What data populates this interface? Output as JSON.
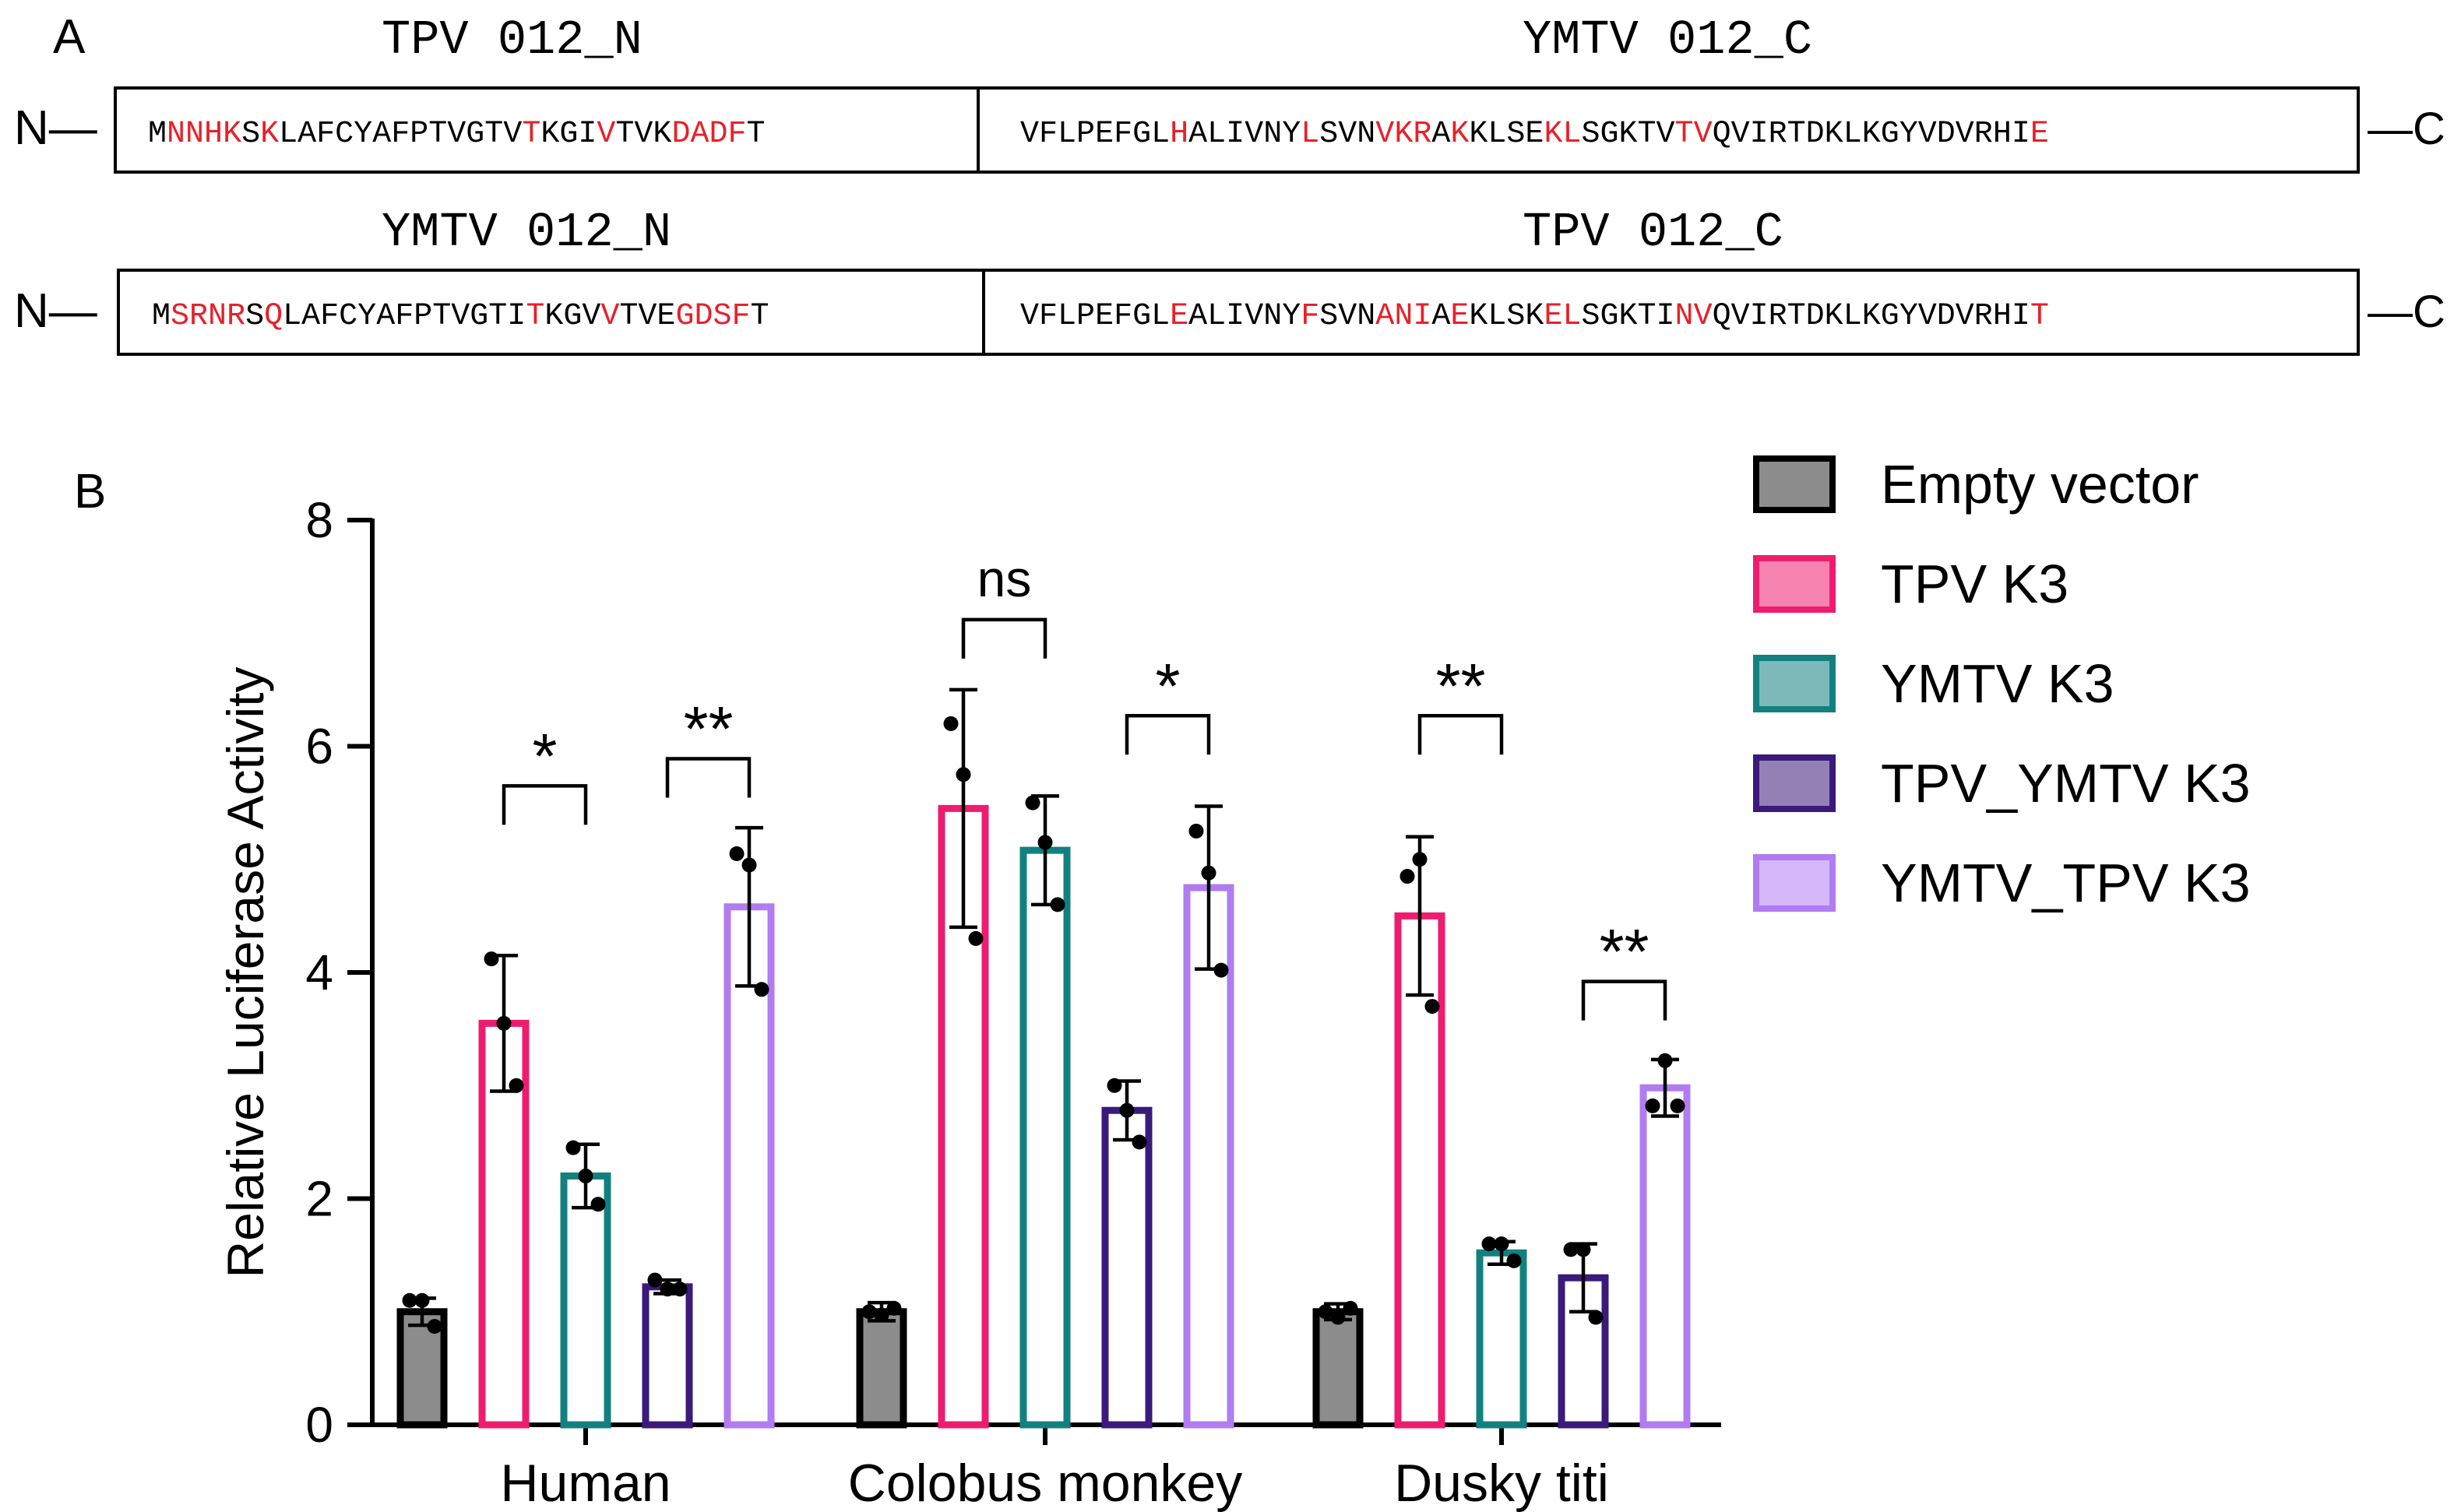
{
  "panel_a": {
    "label": "A",
    "terminal_n": "N—",
    "terminal_c": "—C",
    "constructs": [
      {
        "left_title": "TPV 012_N",
        "right_title": "YMTV 012_C",
        "left_seq": "MNNHKSKLAFCYAFPTVGTVTKGIVTVKDADFT",
        "left_red": "011110100000000000001000100011110",
        "right_seq": "VFLPEFGLHALIVNYLSVNVKRAKKLSEKLSGKTVTVQVIRTDKLKGYVDVRHIE",
        "right_red": "0000000010000001000111010000110000011000000000000000001"
      },
      {
        "left_title": "YMTV 012_N",
        "right_title": "TPV 012_C",
        "left_seq": "MSRNRSQLAFCYAFPTVGTITKGVVTVEGDSFT",
        "left_red": "011110100000000000001000100011110",
        "right_seq": "VFLPEFGLEALIVNYFSVNANIAEKLSKELSGKTINVQVIRTDKLKGYVDVRHIT",
        "right_red": "0000000010000001000111010000110000011000000000000000001"
      }
    ]
  },
  "panel_b": {
    "label": "B"
  },
  "colors": {
    "red_residue": "#e8202a",
    "empty_vector": "#8c8c8c",
    "tpv_k3": "#ee1c6f",
    "ymtv_k3": "#138080",
    "tpv_ymtv_k3": "#3a1a7a",
    "ymtv_tpv_k3": "#b07cf0"
  },
  "chart_data": {
    "type": "bar",
    "ylabel": "Relative Luciferase Activity",
    "xlabel": "",
    "ylim": [
      0,
      8
    ],
    "yticks": [
      0,
      2,
      4,
      6,
      8
    ],
    "categories": [
      "Human",
      "Colobus monkey",
      "Dusky titi"
    ],
    "legend_position": "top-right",
    "series": [
      {
        "name": "Empty vector",
        "fill": "#8c8c8c",
        "stroke": "#000000",
        "values": [
          1.0,
          1.0,
          1.0
        ],
        "err": [
          0.12,
          0.08,
          0.07
        ],
        "points": [
          [
            1.1,
            1.1,
            0.87
          ],
          [
            1.0,
            0.97,
            1.03
          ],
          [
            1.0,
            0.95,
            1.03
          ]
        ]
      },
      {
        "name": "TPV K3",
        "fill": "#ffffff",
        "stroke": "#ee1c6f",
        "values": [
          3.55,
          5.45,
          4.5
        ],
        "err": [
          0.6,
          1.05,
          0.7
        ],
        "points": [
          [
            4.12,
            3.55,
            3.0
          ],
          [
            6.2,
            5.75,
            4.3
          ],
          [
            4.85,
            5.0,
            3.7
          ]
        ]
      },
      {
        "name": "YMTV K3",
        "fill": "#ffffff",
        "stroke": "#138080",
        "values": [
          2.2,
          5.08,
          1.52
        ],
        "err": [
          0.28,
          0.48,
          0.1
        ],
        "points": [
          [
            2.45,
            2.2,
            1.95
          ],
          [
            5.5,
            5.15,
            4.6
          ],
          [
            1.6,
            1.6,
            1.45
          ]
        ]
      },
      {
        "name": "TPV_YMTV K3",
        "fill": "#ffffff",
        "stroke": "#3a1a7a",
        "values": [
          1.22,
          2.78,
          1.3
        ],
        "err": [
          0.06,
          0.26,
          0.3
        ],
        "points": [
          [
            1.28,
            1.2,
            1.2
          ],
          [
            3.0,
            2.78,
            2.5
          ],
          [
            1.55,
            1.55,
            0.95
          ]
        ]
      },
      {
        "name": "YMTV_TPV K3",
        "fill": "#ffffff",
        "stroke": "#b07cf0",
        "values": [
          4.58,
          4.75,
          2.98
        ],
        "err": [
          0.7,
          0.72,
          0.25
        ],
        "points": [
          [
            5.05,
            4.95,
            3.85
          ],
          [
            5.25,
            4.88,
            4.02
          ],
          [
            2.82,
            3.22,
            2.82
          ]
        ]
      }
    ],
    "annotations": [
      {
        "text": "*",
        "category": 0,
        "from": 1,
        "to": 2,
        "y": 5.65
      },
      {
        "text": "**",
        "category": 0,
        "from": 3,
        "to": 4,
        "y": 5.89
      },
      {
        "text": "ns",
        "category": 1,
        "from": 1,
        "to": 2,
        "y": 7.12
      },
      {
        "text": "*",
        "category": 1,
        "from": 3,
        "to": 4,
        "y": 6.27
      },
      {
        "text": "**",
        "category": 2,
        "from": 1,
        "to": 2,
        "y": 6.27
      },
      {
        "text": "**",
        "category": 2,
        "from": 3,
        "to": 4,
        "y": 3.92
      }
    ]
  }
}
